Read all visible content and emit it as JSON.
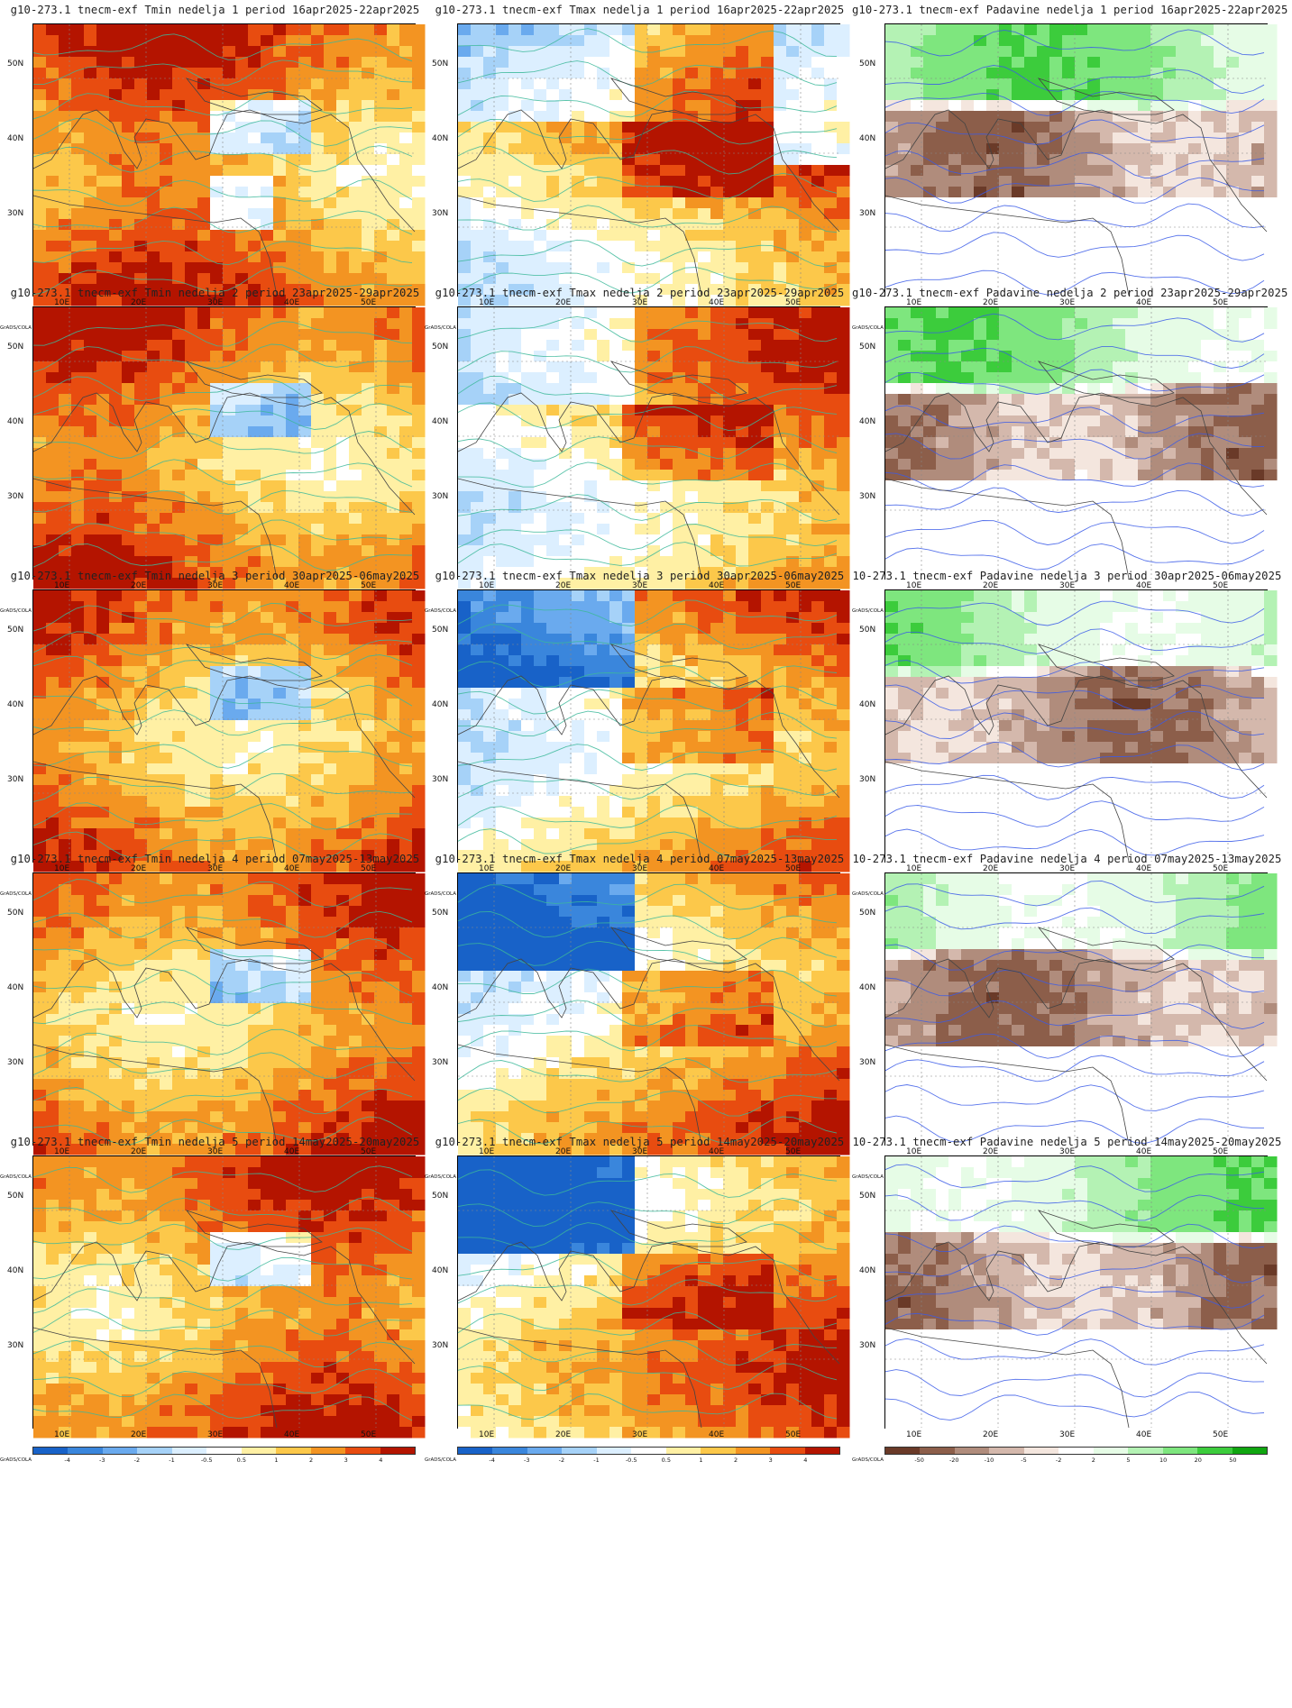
{
  "credit": "GrADS/COLA",
  "lat_labels": [
    "50N",
    "40N",
    "30N"
  ],
  "lon_labels": [
    "10E",
    "20E",
    "30E",
    "40E",
    "50E"
  ],
  "palettes": {
    "temp": {
      "labels": [
        "-4",
        "-3",
        "-2",
        "-1",
        "-0.5",
        "0.5",
        "1",
        "2",
        "3",
        "4"
      ],
      "colors": [
        "#1862c8",
        "#3a86dc",
        "#6aaaee",
        "#a6d2f8",
        "#dcefff",
        "#ffffff",
        "#fff0a4",
        "#fcc84a",
        "#f39422",
        "#e84c10",
        "#b41400"
      ]
    },
    "precip": {
      "labels": [
        "-50",
        "-20",
        "-10",
        "-5",
        "-2",
        "2",
        "5",
        "10",
        "20",
        "50"
      ],
      "colors": [
        "#6a3a28",
        "#8c5e4a",
        "#b08c7c",
        "#d4b8ac",
        "#f4e6de",
        "#ffffff",
        "#e6fce6",
        "#b4f2b4",
        "#7ee67e",
        "#3ccc3c",
        "#10a610"
      ]
    }
  },
  "rows": [
    {
      "week": "1",
      "period": "16apr2025-22apr2025",
      "titles": [
        "g10-273.1 tnecm-exf Tmin nedelja 1 period 16apr2025-22apr2025",
        "g10-273.1 tnecm-exf Tmax nedelja 1 period 16apr2025-22apr2025",
        "g10-273.1 tnecm-exf Padavine nedelja 1 period 16apr2025-22apr2025"
      ]
    },
    {
      "week": "2",
      "period": "23apr2025-29apr2025",
      "titles": [
        "g10-273.1 tnecm-exf Tmin nedelja 2 period 23apr2025-29apr2025",
        "g10-273.1 tnecm-exf Tmax nedelja 2 period 23apr2025-29apr2025",
        "g10-273.1 tnecm-exf Padavine nedelja 2 period 23apr2025-29apr2025"
      ]
    },
    {
      "week": "3",
      "period": "30apr2025-06may2025",
      "titles": [
        "g10-273.1 tnecm-exf Tmin nedelja 3 period 30apr2025-06may2025",
        "g10-273.1 tnecm-exf Tmax nedelja 3 period 30apr2025-06may2025",
        "10-273.1 tnecm-exf Padavine nedelja 3 period 30apr2025-06may2025"
      ]
    },
    {
      "week": "4",
      "period": "07may2025-13may2025",
      "titles": [
        "g10-273.1 tnecm-exf Tmin nedelja 4 period 07may2025-13may2025",
        "g10-273.1 tnecm-exf Tmax nedelja 4 period 07may2025-13may2025",
        "10-273.1 tnecm-exf Padavine nedelja 4 period 07may2025-13may2025"
      ]
    },
    {
      "week": "5",
      "period": "14may2025-20may2025",
      "titles": [
        "g10-273.1 tnecm-exf Tmin nedelja 5 period 14may2025-20may2025",
        "g10-273.1 tnecm-exf Tmax nedelja 5 period 14may2025-20may2025",
        "10-273.1 tnecm-exf Padavine nedelja 5 period 14may2025-20may2025"
      ]
    }
  ],
  "columns": [
    {
      "variable": "Tmin",
      "palette": "temp",
      "anomaly": "warm",
      "contour_color": "#3cb89a"
    },
    {
      "variable": "Tmax",
      "palette": "temp",
      "anomaly": "mixed",
      "contour_color": "#3cb89a"
    },
    {
      "variable": "Padavine",
      "palette": "precip",
      "anomaly": "dry-south-wet-north",
      "contour_color": "#3a5ae8"
    }
  ]
}
